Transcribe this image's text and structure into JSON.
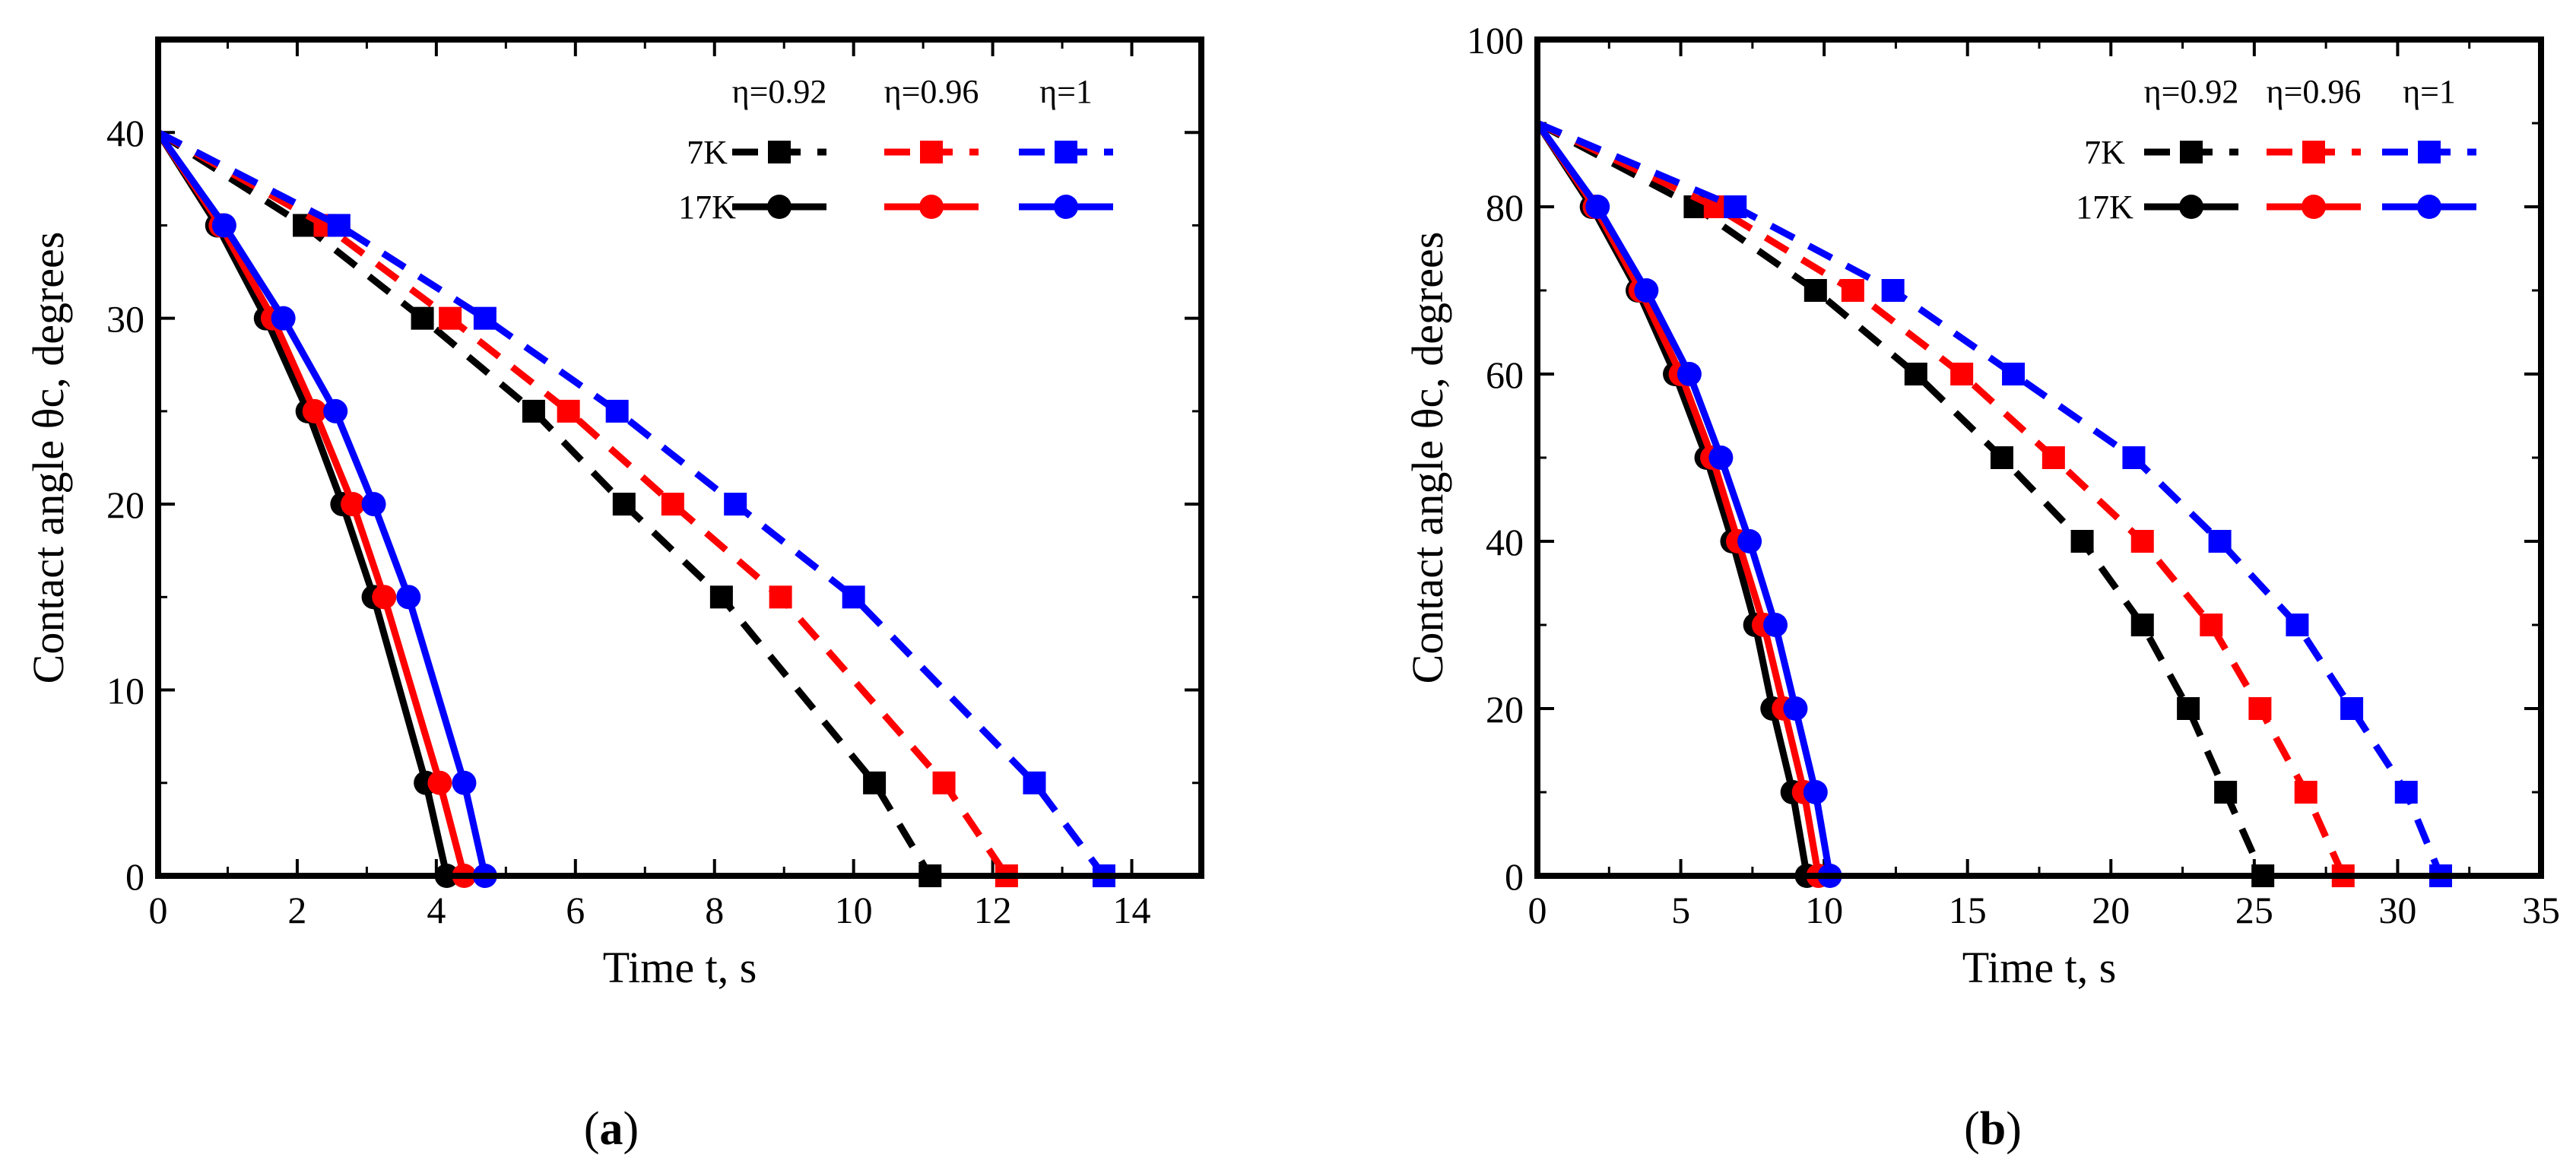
{
  "chart_data": [
    {
      "panel_label": "a",
      "type": "line",
      "xlabel": "Time t, s",
      "ylabel": "Contact angle θc, degrees",
      "xlim": [
        0,
        15
      ],
      "ylim": [
        0,
        45
      ],
      "xticks": [
        0,
        2,
        4,
        6,
        8,
        10,
        12,
        14
      ],
      "yticks": [
        0,
        10,
        20,
        30,
        40
      ],
      "grid": false,
      "legend_position": "top-right",
      "legend": {
        "column_headers": [
          "η=0.92",
          "η=0.96",
          "η=1"
        ],
        "row_labels": [
          "7K",
          "17K"
        ]
      },
      "series": [
        {
          "group": "7K",
          "eta": "η=0.92",
          "color": "#000000",
          "marker": "square",
          "dash": true,
          "x": [
            0,
            2.1,
            3.8,
            5.4,
            6.7,
            8.1,
            10.3,
            11.1
          ],
          "y": [
            40,
            35,
            30,
            25,
            20,
            15,
            5,
            0
          ]
        },
        {
          "group": "7K",
          "eta": "η=0.96",
          "color": "#ff0000",
          "marker": "square",
          "dash": true,
          "x": [
            0,
            2.4,
            4.2,
            5.9,
            7.4,
            8.95,
            11.3,
            12.2
          ],
          "y": [
            40,
            35,
            30,
            25,
            20,
            15,
            5,
            0
          ]
        },
        {
          "group": "7K",
          "eta": "η=1",
          "color": "#0000ff",
          "marker": "square",
          "dash": true,
          "x": [
            0,
            2.6,
            4.7,
            6.6,
            8.3,
            10.0,
            12.6,
            13.6
          ],
          "y": [
            40,
            35,
            30,
            25,
            20,
            15,
            5,
            0
          ]
        },
        {
          "group": "17K",
          "eta": "η=0.92",
          "color": "#000000",
          "marker": "circle",
          "dash": false,
          "x": [
            0,
            0.85,
            1.55,
            2.15,
            2.65,
            3.1,
            3.85,
            4.15
          ],
          "y": [
            40,
            35,
            30,
            25,
            20,
            15,
            5,
            0
          ]
        },
        {
          "group": "17K",
          "eta": "η=0.96",
          "color": "#ff0000",
          "marker": "circle",
          "dash": false,
          "x": [
            0,
            0.9,
            1.65,
            2.25,
            2.8,
            3.25,
            4.05,
            4.4
          ],
          "y": [
            40,
            35,
            30,
            25,
            20,
            15,
            5,
            0
          ]
        },
        {
          "group": "17K",
          "eta": "η=1",
          "color": "#0000ff",
          "marker": "circle",
          "dash": false,
          "x": [
            0,
            0.95,
            1.8,
            2.55,
            3.1,
            3.6,
            4.4,
            4.7
          ],
          "y": [
            40,
            35,
            30,
            25,
            20,
            15,
            5,
            0
          ]
        }
      ]
    },
    {
      "panel_label": "b",
      "type": "line",
      "xlabel": "Time t, s",
      "ylabel": "Contact angle θc, degrees",
      "xlim": [
        0,
        35
      ],
      "ylim": [
        0,
        100
      ],
      "xticks": [
        0,
        5,
        10,
        15,
        20,
        25,
        30,
        35
      ],
      "yticks": [
        0,
        20,
        40,
        60,
        80,
        100
      ],
      "grid": false,
      "legend_position": "top-right",
      "legend": {
        "column_headers": [
          "η=0.92",
          "η=0.96",
          "η=1"
        ],
        "row_labels": [
          "7K",
          "17K"
        ]
      },
      "series": [
        {
          "group": "7K",
          "eta": "η=0.92",
          "color": "#000000",
          "marker": "square",
          "dash": true,
          "x": [
            0,
            5.5,
            9.7,
            13.2,
            16.2,
            19.0,
            21.1,
            22.7,
            24.0,
            25.3
          ],
          "y": [
            90,
            80,
            70,
            60,
            50,
            40,
            30,
            20,
            10,
            0
          ]
        },
        {
          "group": "7K",
          "eta": "η=0.96",
          "color": "#ff0000",
          "marker": "square",
          "dash": true,
          "x": [
            0,
            6.2,
            11.0,
            14.8,
            18.0,
            21.1,
            23.5,
            25.2,
            26.8,
            28.1
          ],
          "y": [
            90,
            80,
            70,
            60,
            50,
            40,
            30,
            20,
            10,
            0
          ]
        },
        {
          "group": "7K",
          "eta": "η=1",
          "color": "#0000ff",
          "marker": "square",
          "dash": true,
          "x": [
            0,
            6.9,
            12.4,
            16.6,
            20.8,
            23.8,
            26.5,
            28.4,
            30.3,
            31.5
          ],
          "y": [
            90,
            80,
            70,
            60,
            50,
            40,
            30,
            20,
            10,
            0
          ]
        },
        {
          "group": "17K",
          "eta": "η=0.92",
          "color": "#000000",
          "marker": "circle",
          "dash": false,
          "x": [
            0,
            1.9,
            3.5,
            4.8,
            5.9,
            6.8,
            7.6,
            8.2,
            8.9,
            9.4
          ],
          "y": [
            90,
            80,
            70,
            60,
            50,
            40,
            30,
            20,
            10,
            0
          ]
        },
        {
          "group": "17K",
          "eta": "η=0.96",
          "color": "#ff0000",
          "marker": "circle",
          "dash": false,
          "x": [
            0,
            2.0,
            3.6,
            5.0,
            6.1,
            7.0,
            7.9,
            8.6,
            9.3,
            9.8
          ],
          "y": [
            90,
            80,
            70,
            60,
            50,
            40,
            30,
            20,
            10,
            0
          ]
        },
        {
          "group": "17K",
          "eta": "η=1",
          "color": "#0000ff",
          "marker": "circle",
          "dash": false,
          "x": [
            0,
            2.1,
            3.8,
            5.3,
            6.4,
            7.4,
            8.3,
            9.0,
            9.7,
            10.2
          ],
          "y": [
            90,
            80,
            70,
            60,
            50,
            40,
            30,
            20,
            10,
            0
          ]
        }
      ]
    }
  ]
}
